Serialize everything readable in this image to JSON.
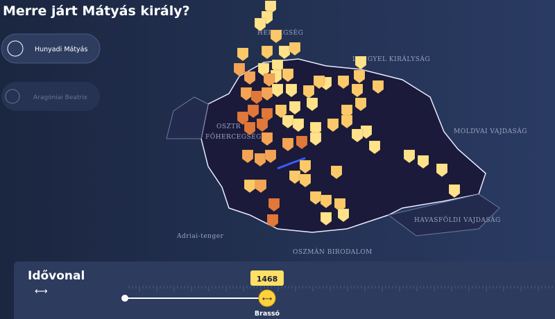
{
  "header": {
    "title": "Merre járt Mátyás király?"
  },
  "people": [
    {
      "name": "Hunyadi Mátyás"
    },
    {
      "name": "Aragóniai Beatrix"
    }
  ],
  "map": {
    "labels": [
      "HERCEGSÉG",
      "LENGYEL KIRÁLYSÁG",
      "OSZTR",
      "FŐHERCEGSÉG",
      "MOLDVAI VAJDASÁG",
      "HAVASFÖLDI VAJDASÁG",
      "Adriai-tenger",
      "OSZMÁN BIRODALOM"
    ]
  },
  "timeline": {
    "title": "Idővonal",
    "year": "1468",
    "place": "Brassó"
  }
}
